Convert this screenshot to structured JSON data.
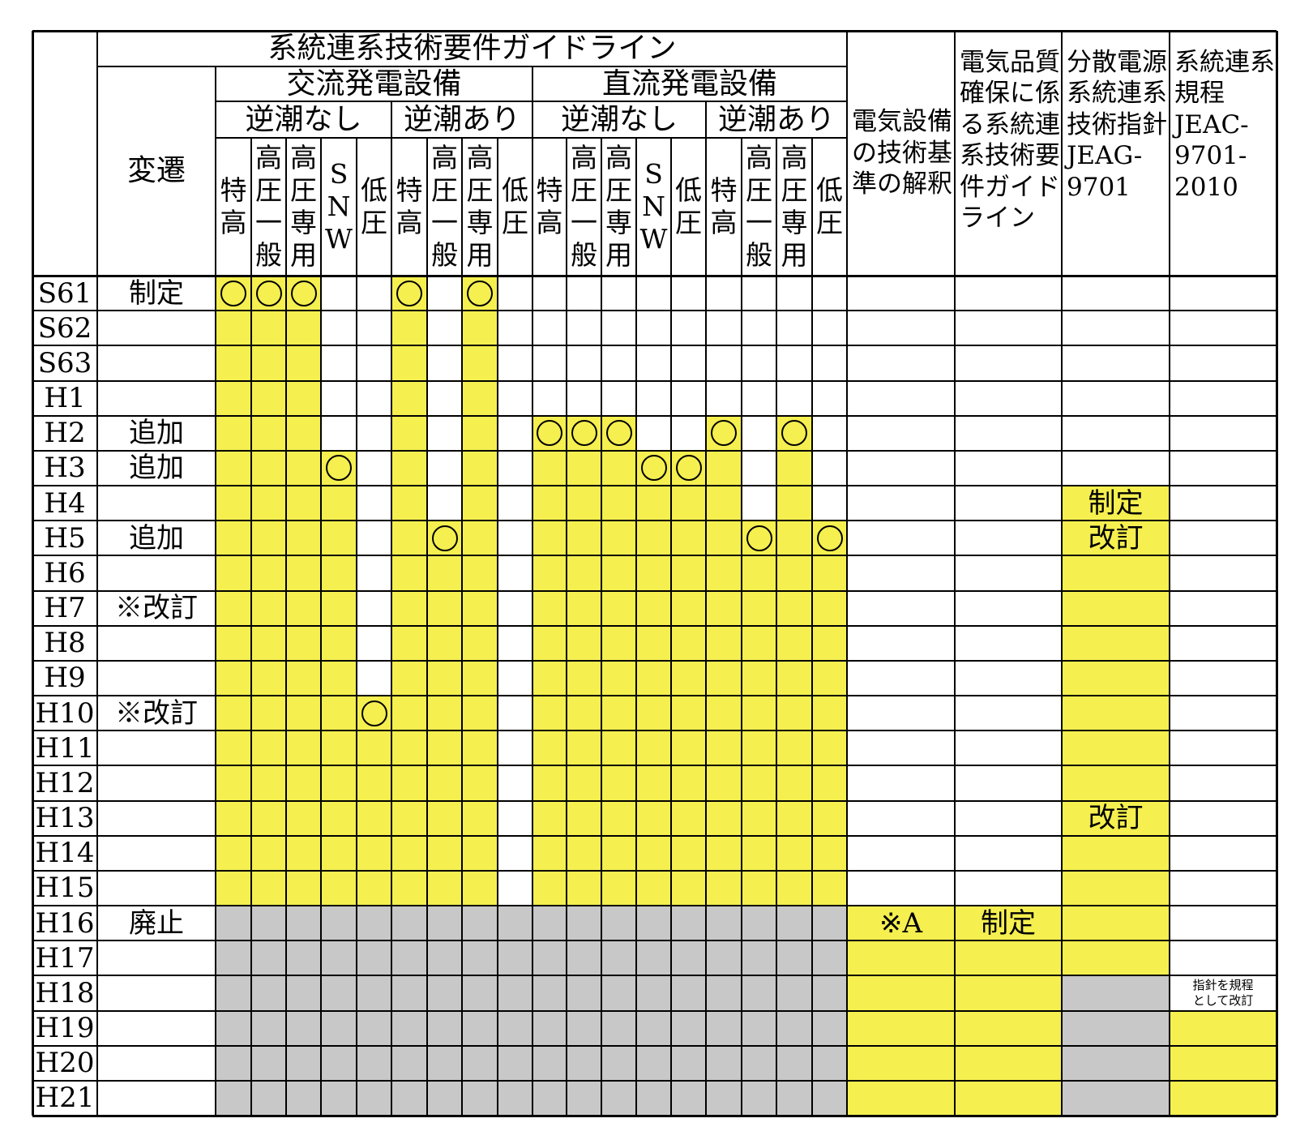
{
  "header": {
    "guideline_title": "系統連系技術要件ガイドライン",
    "ac_title": "交流発電設備",
    "dc_title": "直流発電設備",
    "no_reverse": "逆潮なし",
    "with_reverse": "逆潮あり",
    "change_col": "変遷",
    "sub_cols": [
      "特高",
      "高圧一般",
      "高圧専用",
      "SNW",
      "低圧"
    ],
    "col_denki_setsubi": [
      "電気設備",
      "の技術基",
      "準の解釈"
    ],
    "col_denki_hinshitsu": [
      "電気品質",
      "確保に係",
      "る系統連",
      "系技術要",
      "件ガイド",
      "ライン"
    ],
    "col_bunsan": [
      "分散電源",
      "系統連系",
      "技術指針",
      "JEAG-",
      "9701"
    ],
    "col_kitei": [
      "系統連系",
      "規程",
      "JEAC-",
      "9701-",
      "2010"
    ]
  },
  "rows": [
    {
      "era": "S61",
      "change": "制定"
    },
    {
      "era": "S62",
      "change": ""
    },
    {
      "era": "S63",
      "change": ""
    },
    {
      "era": "H1",
      "change": ""
    },
    {
      "era": "H2",
      "change": "追加"
    },
    {
      "era": "H3",
      "change": "追加"
    },
    {
      "era": "H4",
      "change": ""
    },
    {
      "era": "H5",
      "change": "追加"
    },
    {
      "era": "H6",
      "change": ""
    },
    {
      "era": "H7",
      "change": "※改訂"
    },
    {
      "era": "H8",
      "change": ""
    },
    {
      "era": "H9",
      "change": ""
    },
    {
      "era": "H10",
      "change": "※改訂"
    },
    {
      "era": "H11",
      "change": ""
    },
    {
      "era": "H12",
      "change": ""
    },
    {
      "era": "H13",
      "change": ""
    },
    {
      "era": "H14",
      "change": ""
    },
    {
      "era": "H15",
      "change": ""
    },
    {
      "era": "H16",
      "change": "廃止"
    },
    {
      "era": "H17",
      "change": ""
    },
    {
      "era": "H18",
      "change": ""
    },
    {
      "era": "H19",
      "change": ""
    },
    {
      "era": "H20",
      "change": ""
    },
    {
      "era": "H21",
      "change": ""
    }
  ],
  "guideline_columns": [
    {
      "group": "ac-no-reverse",
      "sub": "特高",
      "start_row": 0,
      "end_row": 17
    },
    {
      "group": "ac-no-reverse",
      "sub": "高圧一般",
      "start_row": 0,
      "end_row": 17
    },
    {
      "group": "ac-no-reverse",
      "sub": "高圧専用",
      "start_row": 0,
      "end_row": 17
    },
    {
      "group": "ac-no-reverse",
      "sub": "SNW",
      "start_row": 5,
      "end_row": 17
    },
    {
      "group": "ac-no-reverse",
      "sub": "低圧",
      "start_row": 12,
      "end_row": 17
    },
    {
      "group": "ac-reverse",
      "sub": "特高",
      "start_row": 0,
      "end_row": 17
    },
    {
      "group": "ac-reverse",
      "sub": "高圧一般",
      "start_row": 7,
      "end_row": 17
    },
    {
      "group": "ac-reverse",
      "sub": "高圧専用",
      "start_row": 0,
      "end_row": 17
    },
    {
      "group": "ac-reverse",
      "sub": "低圧",
      "start_row": null,
      "end_row": null
    },
    {
      "group": "dc-no-reverse",
      "sub": "特高",
      "start_row": 4,
      "end_row": 17
    },
    {
      "group": "dc-no-reverse",
      "sub": "高圧一般",
      "start_row": 4,
      "end_row": 17
    },
    {
      "group": "dc-no-reverse",
      "sub": "高圧専用",
      "start_row": 4,
      "end_row": 17
    },
    {
      "group": "dc-no-reverse",
      "sub": "SNW",
      "start_row": 5,
      "end_row": 17
    },
    {
      "group": "dc-no-reverse",
      "sub": "低圧",
      "start_row": 5,
      "end_row": 17
    },
    {
      "group": "dc-reverse",
      "sub": "特高",
      "start_row": 4,
      "end_row": 17
    },
    {
      "group": "dc-reverse",
      "sub": "高圧一般",
      "start_row": 7,
      "end_row": 17
    },
    {
      "group": "dc-reverse",
      "sub": "高圧専用",
      "start_row": 4,
      "end_row": 17
    },
    {
      "group": "dc-reverse",
      "sub": "低圧",
      "start_row": 7,
      "end_row": 17
    }
  ],
  "abolished_from_row": 18,
  "right_columns": {
    "denki_setsubi": {
      "labels": {
        "18": "※A"
      },
      "yellow_rows": [
        18,
        19,
        20,
        21,
        22,
        23
      ]
    },
    "denki_hinshitsu": {
      "labels": {
        "18": "制定"
      },
      "yellow_rows": [
        18,
        19,
        20,
        21,
        22,
        23
      ]
    },
    "bunsan": {
      "labels": {
        "6": "制定",
        "7": "改訂",
        "15": "改訂"
      },
      "yellow_rows": [
        6,
        7,
        8,
        9,
        10,
        11,
        12,
        13,
        14,
        15,
        16,
        17,
        18,
        19
      ],
      "gray_rows": [
        20,
        21,
        22,
        23
      ]
    },
    "kitei": {
      "labels": {
        "20": "指針を規程として改訂"
      },
      "yellow_rows": [
        21,
        22,
        23
      ]
    }
  },
  "colors": {
    "active": "#f5ef50",
    "abolished": "#c8c8c8",
    "line": "#000000"
  }
}
